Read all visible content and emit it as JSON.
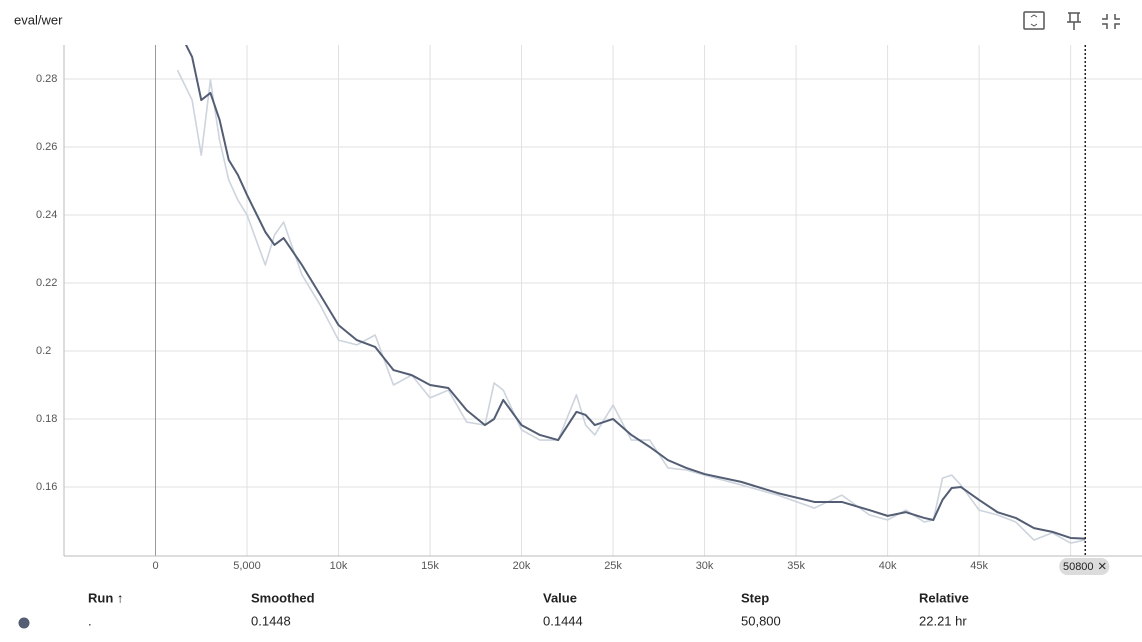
{
  "chart_data": {
    "type": "line",
    "title": "eval/wer",
    "x": [
      1200,
      2000,
      2500,
      3000,
      3500,
      4000,
      4500,
      5000,
      6000,
      6500,
      7000,
      8000,
      9000,
      10000,
      11000,
      12000,
      13000,
      14000,
      15000,
      16000,
      17000,
      18000,
      18500,
      19000,
      20000,
      21000,
      22000,
      23000,
      23500,
      24000,
      25000,
      26000,
      27000,
      28000,
      29000,
      30000,
      32000,
      34000,
      36000,
      37500,
      39000,
      40000,
      41000,
      42000,
      42500,
      43000,
      43500,
      44000,
      45000,
      46000,
      47000,
      48000,
      49000,
      50000,
      50800
    ],
    "series": [
      {
        "name": "Value",
        "color": "#cdd4de",
        "values": [
          0.2826,
          0.2738,
          0.2576,
          0.2797,
          0.262,
          0.2503,
          0.2444,
          0.24,
          0.2253,
          0.2341,
          0.2379,
          0.2224,
          0.2135,
          0.2032,
          0.2018,
          0.2047,
          0.19,
          0.1929,
          0.1862,
          0.1885,
          0.1791,
          0.1782,
          0.1906,
          0.1885,
          0.1768,
          0.1738,
          0.1738,
          0.1871,
          0.1782,
          0.1753,
          0.1841,
          0.1738,
          0.1738,
          0.1656,
          0.165,
          0.1635,
          0.1606,
          0.1576,
          0.1538,
          0.1576,
          0.1518,
          0.1503,
          0.1532,
          0.1497,
          0.1503,
          0.1626,
          0.1635,
          0.1606,
          0.1532,
          0.1518,
          0.1497,
          0.1444,
          0.1465,
          0.1435,
          0.1444
        ]
      },
      {
        "name": "Smoothed",
        "color": "#535d73",
        "values": [
          0.295,
          0.2865,
          0.2738,
          0.2759,
          0.268,
          0.2562,
          0.2518,
          0.2459,
          0.235,
          0.2312,
          0.2332,
          0.2253,
          0.2165,
          0.2076,
          0.2032,
          0.2012,
          0.1944,
          0.1929,
          0.19,
          0.1891,
          0.1826,
          0.1782,
          0.18,
          0.1856,
          0.1782,
          0.1753,
          0.1738,
          0.1821,
          0.1812,
          0.1782,
          0.18,
          0.1753,
          0.1718,
          0.1679,
          0.1656,
          0.1638,
          0.1615,
          0.1582,
          0.1556,
          0.1556,
          0.1532,
          0.1515,
          0.1526,
          0.1509,
          0.1503,
          0.1562,
          0.1597,
          0.16,
          0.1562,
          0.1526,
          0.1509,
          0.1479,
          0.1468,
          0.145,
          0.1448
        ]
      }
    ],
    "xlim": [
      -5000,
      53900
    ],
    "xticks": [
      0,
      {
        "value": 5000,
        "label": "5,000"
      },
      {
        "value": 10000,
        "label": "10k"
      },
      {
        "value": 15000,
        "label": "15k"
      },
      {
        "value": 20000,
        "label": "20k"
      },
      {
        "value": 25000,
        "label": "25k"
      },
      {
        "value": 30000,
        "label": "30k"
      },
      {
        "value": 35000,
        "label": "35k"
      },
      {
        "value": 40000,
        "label": "40k"
      },
      {
        "value": 45000,
        "label": "45k"
      },
      {
        "value": 50000,
        "label": "50k"
      }
    ],
    "ylim": [
      0.1397,
      0.29
    ],
    "yticks": [
      0.16,
      0.18,
      0.2,
      0.22,
      0.24,
      0.26,
      0.28
    ],
    "grid": true,
    "cursor": 50800
  },
  "table": {
    "headers": [
      "Run ↑",
      "Smoothed",
      "Value",
      "Step",
      "Relative"
    ],
    "rows": [
      [
        ".",
        "0.1448",
        "0.1444",
        "50,800",
        "22.21 hr"
      ]
    ]
  }
}
